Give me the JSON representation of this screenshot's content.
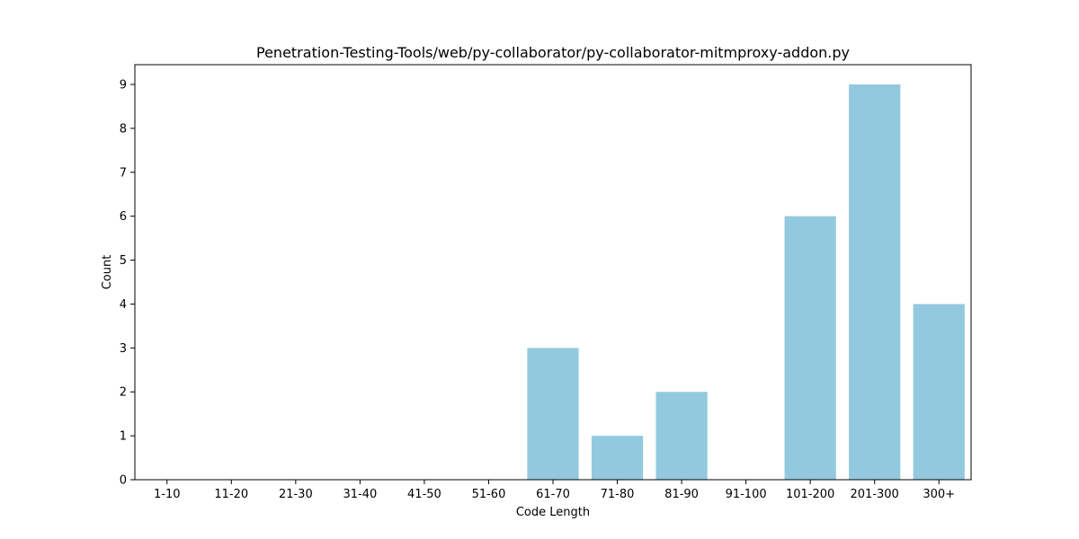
{
  "chart_data": {
    "type": "bar",
    "title": "Penetration-Testing-Tools/web/py-collaborator/py-collaborator-mitmproxy-addon.py",
    "xlabel": "Code Length",
    "ylabel": "Count",
    "categories": [
      "1-10",
      "11-20",
      "21-30",
      "31-40",
      "41-50",
      "51-60",
      "61-70",
      "71-80",
      "81-90",
      "91-100",
      "101-200",
      "201-300",
      "300+"
    ],
    "values": [
      0,
      0,
      0,
      0,
      0,
      0,
      3,
      1,
      2,
      0,
      6,
      9,
      4
    ],
    "ylim": [
      0,
      9.45
    ],
    "yticks": [
      0,
      1,
      2,
      3,
      4,
      5,
      6,
      7,
      8,
      9
    ],
    "bar_color": "#92c9de",
    "grid": false,
    "legend": "none"
  }
}
